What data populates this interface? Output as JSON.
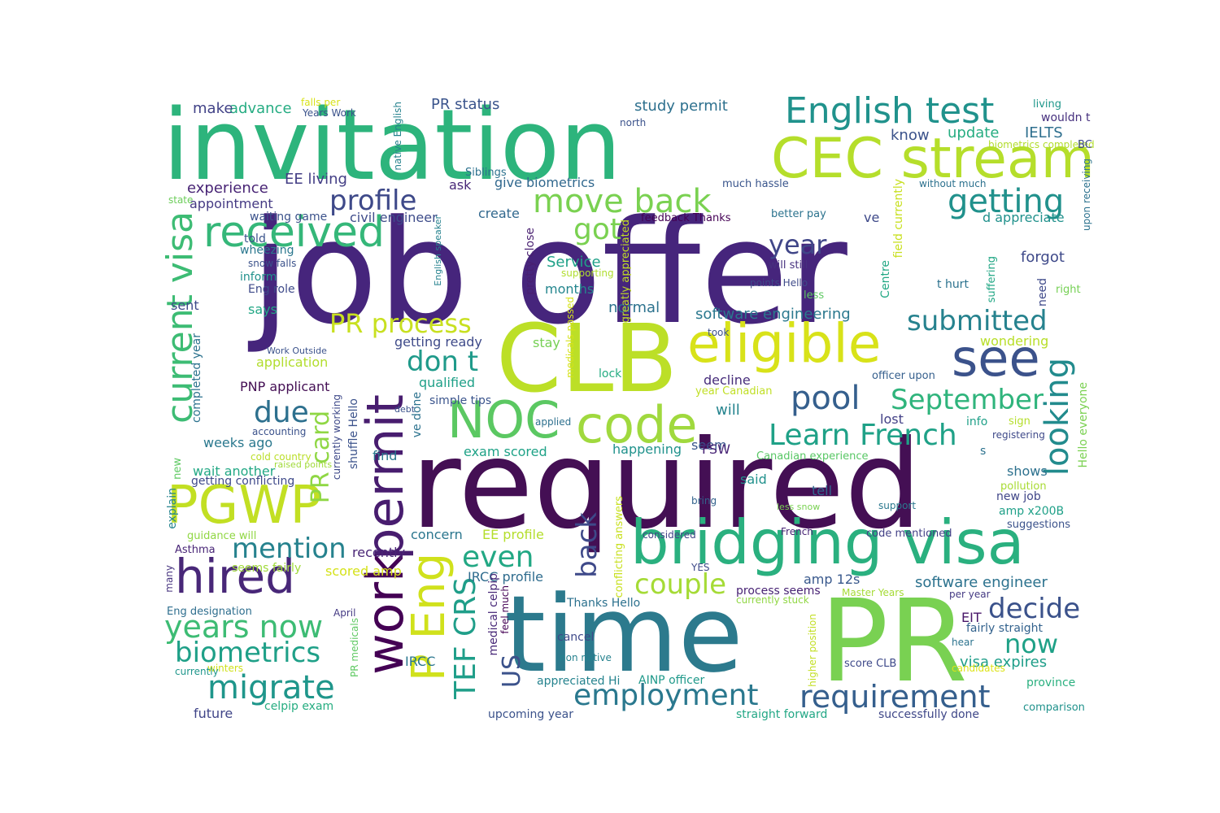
{
  "words": [
    {
      "text": "job offer",
      "color": "#46257c"
    },
    {
      "text": "required",
      "color": "#440f54"
    },
    {
      "text": "invitation",
      "color": "#2db47c"
    },
    {
      "text": "time",
      "color": "#2c7a8d"
    },
    {
      "text": "PR",
      "color": "#79d152"
    },
    {
      "text": "CLB",
      "color": "#bcdf27"
    },
    {
      "text": "bridging visa",
      "color": "#2ab07f"
    },
    {
      "text": "CEC stream",
      "color": "#b5de2b"
    },
    {
      "text": "eligible",
      "color": "#d8e219"
    },
    {
      "text": "NOC",
      "color": "#5bc862"
    },
    {
      "text": "code",
      "color": "#a0d93e"
    },
    {
      "text": "PGWP",
      "color": "#c2df23"
    },
    {
      "text": "hired",
      "color": "#482778"
    },
    {
      "text": "English test",
      "color": "#20928c"
    },
    {
      "text": "see",
      "color": "#3b528b"
    },
    {
      "text": "received",
      "color": "#35b779"
    },
    {
      "text": "permit",
      "color": "#481d6f"
    },
    {
      "text": "work",
      "color": "#440154"
    },
    {
      "text": "P Eng",
      "color": "#d0e11c"
    },
    {
      "text": "current visa",
      "color": "#3dbc74"
    },
    {
      "text": "profile",
      "color": "#3e4989"
    },
    {
      "text": "move back",
      "color": "#7ad151"
    },
    {
      "text": "getting",
      "color": "#21918c"
    },
    {
      "text": "got",
      "color": "#7ad151"
    },
    {
      "text": "year",
      "color": "#404688"
    },
    {
      "text": "PR process",
      "color": "#c8e020"
    },
    {
      "text": "submitted",
      "color": "#26828e"
    },
    {
      "text": "pool",
      "color": "#355f8d"
    },
    {
      "text": "September",
      "color": "#2fb47c"
    },
    {
      "text": "don t",
      "color": "#1f9a8a"
    },
    {
      "text": "Learn French",
      "color": "#1fa187"
    },
    {
      "text": "looking",
      "color": "#228b8d"
    },
    {
      "text": "due",
      "color": "#2d708e"
    },
    {
      "text": "mention",
      "color": "#26828e"
    },
    {
      "text": "even",
      "color": "#22a884"
    },
    {
      "text": "couple",
      "color": "#a5db36"
    },
    {
      "text": "years now",
      "color": "#3dbc74"
    },
    {
      "text": "biometrics",
      "color": "#1fa088"
    },
    {
      "text": "migrate",
      "color": "#1f968b"
    },
    {
      "text": "employment",
      "color": "#2a788e"
    },
    {
      "text": "requirement",
      "color": "#355f8d"
    },
    {
      "text": "decide",
      "color": "#3b528b"
    },
    {
      "text": "now",
      "color": "#1fa187"
    },
    {
      "text": "back",
      "color": "#3e4989"
    },
    {
      "text": "TEF CRS",
      "color": "#1f9e89"
    },
    {
      "text": "US",
      "color": "#3b528b"
    },
    {
      "text": "PR card",
      "color": "#8fd744"
    },
    {
      "text": "software engineering",
      "color": "#2a788e"
    },
    {
      "text": "software engineer",
      "color": "#2c728e"
    },
    {
      "text": "visa expires",
      "color": "#1f9e89"
    },
    {
      "text": "PR status",
      "color": "#3a548c"
    },
    {
      "text": "study permit",
      "color": "#2d708e"
    },
    {
      "text": "advance",
      "color": "#25ac82"
    },
    {
      "text": "make",
      "color": "#414287"
    },
    {
      "text": "IELTS",
      "color": "#2e6f8e"
    },
    {
      "text": "update",
      "color": "#26ad81"
    },
    {
      "text": "know",
      "color": "#3b528b"
    },
    {
      "text": "experience",
      "color": "#482475"
    },
    {
      "text": "appointment",
      "color": "#443983"
    },
    {
      "text": "EE living",
      "color": "#433e85"
    },
    {
      "text": "give biometrics",
      "color": "#31688e"
    },
    {
      "text": "civil engineer",
      "color": "#3e4c8a"
    },
    {
      "text": "create",
      "color": "#31688e"
    },
    {
      "text": "ask",
      "color": "#482878"
    },
    {
      "text": "waiting game",
      "color": "#3b528b"
    },
    {
      "text": "Service",
      "color": "#1fa188"
    },
    {
      "text": "months",
      "color": "#24868e"
    },
    {
      "text": "normal",
      "color": "#2c728e"
    },
    {
      "text": "forgot",
      "color": "#3e4989"
    },
    {
      "text": "d appreciate",
      "color": "#21918c"
    },
    {
      "text": "wondering",
      "color": "#b8de29"
    },
    {
      "text": "decline",
      "color": "#472d7b"
    },
    {
      "text": "will",
      "color": "#25848e"
    },
    {
      "text": "seem",
      "color": "#39568c"
    },
    {
      "text": "lost",
      "color": "#424086"
    },
    {
      "text": "info",
      "color": "#1fa088"
    },
    {
      "text": "shows",
      "color": "#2d718e"
    },
    {
      "text": "tell",
      "color": "#31688e"
    },
    {
      "text": "said",
      "color": "#21918c"
    },
    {
      "text": "happening",
      "color": "#20928c"
    },
    {
      "text": "FSW",
      "color": "#482576"
    },
    {
      "text": "sent",
      "color": "#3e4a89"
    },
    {
      "text": "says",
      "color": "#22a785"
    },
    {
      "text": "told",
      "color": "#3a538b"
    },
    {
      "text": "application",
      "color": "#b2dd2d"
    },
    {
      "text": "PNP applicant",
      "color": "#440f54"
    },
    {
      "text": "weeks ago",
      "color": "#2a788e"
    },
    {
      "text": "wait another",
      "color": "#22a884"
    },
    {
      "text": "find",
      "color": "#2a788e"
    },
    {
      "text": "qualified",
      "color": "#1fa088"
    },
    {
      "text": "getting ready",
      "color": "#3e4a89"
    },
    {
      "text": "concern",
      "color": "#2a768e"
    },
    {
      "text": "EE profile",
      "color": "#b4de2c"
    },
    {
      "text": "recently",
      "color": "#482475"
    },
    {
      "text": "scored amp",
      "color": "#d5e21a"
    },
    {
      "text": "IRCC profile",
      "color": "#2f6c8e"
    },
    {
      "text": "IRCC",
      "color": "#2a768e"
    },
    {
      "text": "future",
      "color": "#404588"
    },
    {
      "text": "celpip exam",
      "color": "#26ad81"
    },
    {
      "text": "upcoming year",
      "color": "#3b528b"
    },
    {
      "text": "straight forward",
      "color": "#22a785"
    },
    {
      "text": "successfully done",
      "color": "#3f4788"
    },
    {
      "text": "cancel",
      "color": "#3e4989"
    },
    {
      "text": "amp 12s",
      "color": "#38588c"
    },
    {
      "text": "process seems",
      "color": "#482374"
    },
    {
      "text": "amp x200B",
      "color": "#1fa088"
    },
    {
      "text": "EIT",
      "color": "#481668"
    },
    {
      "text": "fairly straight",
      "color": "#33628d"
    },
    {
      "text": "exam scored",
      "color": "#1fa287"
    },
    {
      "text": "stay",
      "color": "#75d054"
    },
    {
      "text": "lock",
      "color": "#25ac82"
    },
    {
      "text": "Thanks Hello",
      "color": "#2c718e"
    },
    {
      "text": "appreciated Hi",
      "color": "#25838e"
    },
    {
      "text": "AINP officer",
      "color": "#1f998a"
    },
    {
      "text": "Eng role",
      "color": "#3e4a89"
    },
    {
      "text": "inform",
      "color": "#21918c"
    },
    {
      "text": "wheezing",
      "color": "#2a778e"
    },
    {
      "text": "snow falls",
      "color": "#3b528b"
    },
    {
      "text": "feedback Thanks",
      "color": "#440154"
    },
    {
      "text": "will still",
      "color": "#46307e"
    },
    {
      "text": "points Hello",
      "color": "#3e4989"
    },
    {
      "text": "better pay",
      "color": "#2c738e"
    },
    {
      "text": "much hassle",
      "color": "#39558c"
    },
    {
      "text": "Siblings",
      "color": "#2c718e"
    },
    {
      "text": "supporting",
      "color": "#b0dd2f"
    },
    {
      "text": "ve",
      "color": "#3e4989"
    },
    {
      "text": "less",
      "color": "#5ec962"
    },
    {
      "text": "t hurt",
      "color": "#2c728e"
    },
    {
      "text": "took",
      "color": "#3b528b"
    },
    {
      "text": "officer upon",
      "color": "#355f8d"
    },
    {
      "text": "year Canadian",
      "color": "#c0df25"
    },
    {
      "text": "Canadian experience",
      "color": "#58c765"
    },
    {
      "text": "applied",
      "color": "#2d708e"
    },
    {
      "text": "simple tips",
      "color": "#3a548c"
    },
    {
      "text": "debt",
      "color": "#3b528b"
    },
    {
      "text": "explain",
      "color": "#25838e"
    },
    {
      "text": "Asthma",
      "color": "#482576"
    },
    {
      "text": "many",
      "color": "#46337f"
    },
    {
      "text": "guidance will",
      "color": "#90d743"
    },
    {
      "text": "seems fairly",
      "color": "#a0da39"
    },
    {
      "text": "Eng designation",
      "color": "#2e6e8e"
    },
    {
      "text": "April",
      "color": "#443983"
    },
    {
      "text": "winters",
      "color": "#d0e11c"
    },
    {
      "text": "currently",
      "color": "#1f968b"
    },
    {
      "text": "accounting",
      "color": "#3b528b"
    },
    {
      "text": "cold country",
      "color": "#bade28"
    },
    {
      "text": "raised points",
      "color": "#a0da39"
    },
    {
      "text": "getting conflicting",
      "color": "#3e4989"
    },
    {
      "text": "state",
      "color": "#6ccd5a"
    },
    {
      "text": "falls per",
      "color": "#d8e219"
    },
    {
      "text": "Years Work",
      "color": "#3b528b"
    },
    {
      "text": "north",
      "color": "#3b528b"
    },
    {
      "text": "without much",
      "color": "#2c718e"
    },
    {
      "text": "living",
      "color": "#1f978b"
    },
    {
      "text": "wouldn t",
      "color": "#46307e"
    },
    {
      "text": "biometrics completed",
      "color": "#b2dd2d"
    },
    {
      "text": "BC",
      "color": "#3e4a89"
    },
    {
      "text": "right",
      "color": "#75d054"
    },
    {
      "text": "new job",
      "color": "#404688"
    },
    {
      "text": "registering",
      "color": "#3e4989"
    },
    {
      "text": "pollution",
      "color": "#a8db34"
    },
    {
      "text": "sign",
      "color": "#b5de2b"
    },
    {
      "text": "support",
      "color": "#2a788e"
    },
    {
      "text": "suggestions",
      "color": "#3b528b"
    },
    {
      "text": "code mentioned",
      "color": "#424086"
    },
    {
      "text": "French",
      "color": "#482475"
    },
    {
      "text": "considered",
      "color": "#414487"
    },
    {
      "text": "bring",
      "color": "#33638d"
    },
    {
      "text": "YES",
      "color": "#3e4a89"
    },
    {
      "text": "currently stuck",
      "color": "#90d743"
    },
    {
      "text": "Master Years",
      "color": "#a5db36"
    },
    {
      "text": "per year",
      "color": "#443983"
    },
    {
      "text": "hear",
      "color": "#2c738e"
    },
    {
      "text": "candidates",
      "color": "#dde318"
    },
    {
      "text": "province",
      "color": "#2ab07f"
    },
    {
      "text": "comparison",
      "color": "#20928c"
    },
    {
      "text": "score CLB",
      "color": "#3e4989"
    },
    {
      "text": "non native",
      "color": "#26828e"
    },
    {
      "text": "Work Outside",
      "color": "#3b528b"
    },
    {
      "text": "less snow",
      "color": "#79d152"
    },
    {
      "text": "Hello everyone",
      "color": "#7ad151"
    },
    {
      "text": "conflicting answers",
      "color": "#c8e020"
    },
    {
      "text": "medicals passed",
      "color": "#d5e21a"
    },
    {
      "text": "pretty close",
      "color": "#481f70"
    },
    {
      "text": "greatly appreciated",
      "color": "#c2df23"
    },
    {
      "text": "field currently",
      "color": "#c8e020"
    },
    {
      "text": "Centre",
      "color": "#22a884"
    },
    {
      "text": "need",
      "color": "#3e4989"
    },
    {
      "text": "suffering",
      "color": "#22a785"
    },
    {
      "text": "upon receiving",
      "color": "#2c728e"
    },
    {
      "text": "native English",
      "color": "#26828e"
    },
    {
      "text": "English speaker",
      "color": "#26828e"
    },
    {
      "text": "completed year",
      "color": "#2c728e"
    },
    {
      "text": "shuffle Hello",
      "color": "#3b528b"
    },
    {
      "text": "currently working",
      "color": "#3e4989"
    },
    {
      "text": "new",
      "color": "#5ec962"
    },
    {
      "text": "PR medicals",
      "color": "#5ec962"
    },
    {
      "text": "medical celpip",
      "color": "#482878"
    },
    {
      "text": "feel much",
      "color": "#440154"
    },
    {
      "text": "ve done",
      "color": "#2c728e"
    },
    {
      "text": "higher position",
      "color": "#c2df23"
    },
    {
      "text": "s",
      "color": "#2c728e"
    }
  ]
}
